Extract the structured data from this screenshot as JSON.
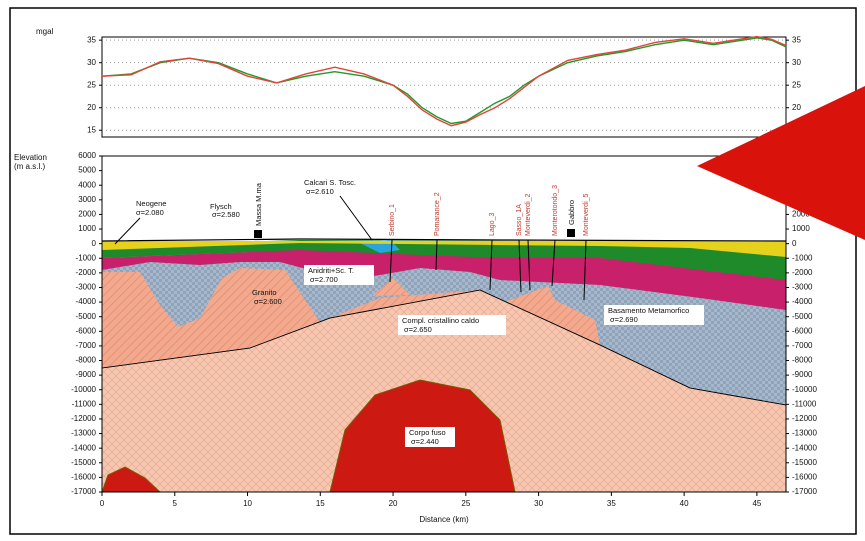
{
  "chart_data": [
    {
      "type": "line",
      "ylabel": "mgal",
      "xlim": [
        0,
        47
      ],
      "ylim": [
        13.5,
        35.7
      ],
      "yticks": [
        15,
        20,
        25,
        30,
        35
      ],
      "grid": true,
      "series": [
        {
          "color": "#1f9a2a",
          "x": [
            0,
            2,
            4,
            6,
            8,
            10,
            12,
            14,
            16,
            18,
            20,
            21,
            22,
            23,
            24,
            25,
            26,
            27,
            28,
            29,
            30,
            32,
            34,
            36,
            38,
            40,
            42,
            44,
            45,
            46,
            47
          ],
          "values": [
            27,
            27.5,
            30,
            31,
            30,
            27.5,
            25.5,
            27,
            28,
            27,
            25,
            23,
            20,
            18,
            16.5,
            17,
            19,
            21,
            22.5,
            25,
            27,
            30,
            31.5,
            32.5,
            34,
            35,
            34,
            35,
            35.5,
            35,
            33.5
          ]
        },
        {
          "color": "#e0443a",
          "x": [
            0,
            2,
            4,
            6,
            8,
            10,
            12,
            14,
            16,
            18,
            20,
            21,
            22,
            23,
            24,
            25,
            26,
            27,
            28,
            29,
            30,
            32,
            34,
            36,
            38,
            40,
            42,
            44,
            45,
            46,
            47
          ],
          "values": [
            27,
            27.3,
            30.2,
            31,
            29.8,
            27,
            25.5,
            27.5,
            29,
            27.5,
            25,
            22.5,
            19.5,
            17.5,
            16,
            16.8,
            18.5,
            20,
            22,
            24.5,
            27,
            30.5,
            31.8,
            32.8,
            34.5,
            35.3,
            34.3,
            35.3,
            35.8,
            35.2,
            33.8
          ]
        }
      ]
    },
    {
      "type": "section",
      "ylabel": [
        "Elevation",
        "(m a.s.l.)"
      ],
      "xlabel": "Distance (km)",
      "xlim": [
        0,
        47
      ],
      "xticks": [
        0,
        5,
        10,
        15,
        20,
        25,
        30,
        35,
        40,
        45
      ],
      "ylim": [
        -17000,
        6000
      ],
      "yticks": [
        6000,
        5000,
        4000,
        3000,
        2000,
        1000,
        0,
        -1000,
        -2000,
        -3000,
        -4000,
        -5000,
        -6000,
        -7000,
        -8000,
        -9000,
        -10000,
        -11000,
        -12000,
        -13000,
        -14000,
        -15000,
        -16000,
        -17000
      ],
      "units": [
        {
          "name": "Neogene",
          "density": "σ=2.080"
        },
        {
          "name": "Flysch",
          "density": "σ=2.580"
        },
        {
          "name": "Calcari S. Tosc.",
          "density": "σ=2.610"
        },
        {
          "name": "Anidriti+Sc. T.",
          "density": "σ=2.700"
        },
        {
          "name": "Granito",
          "density": "σ=2.600"
        },
        {
          "name": "Compl. cristallino caldo",
          "density": "σ=2.650"
        },
        {
          "name": "Basamento Metamorfico",
          "density": "σ=2.690"
        },
        {
          "name": "Corpo fuso",
          "density": "σ=2.440"
        }
      ],
      "markers": [
        "Massa M.ma",
        "Gabbro"
      ],
      "wells": [
        "Serbino_1",
        "Pomarance_2",
        "Lago_3",
        "Sasso_1A",
        "Monteverdi_2",
        "Monterotondo_3",
        "Monteverdi_5"
      ]
    }
  ]
}
